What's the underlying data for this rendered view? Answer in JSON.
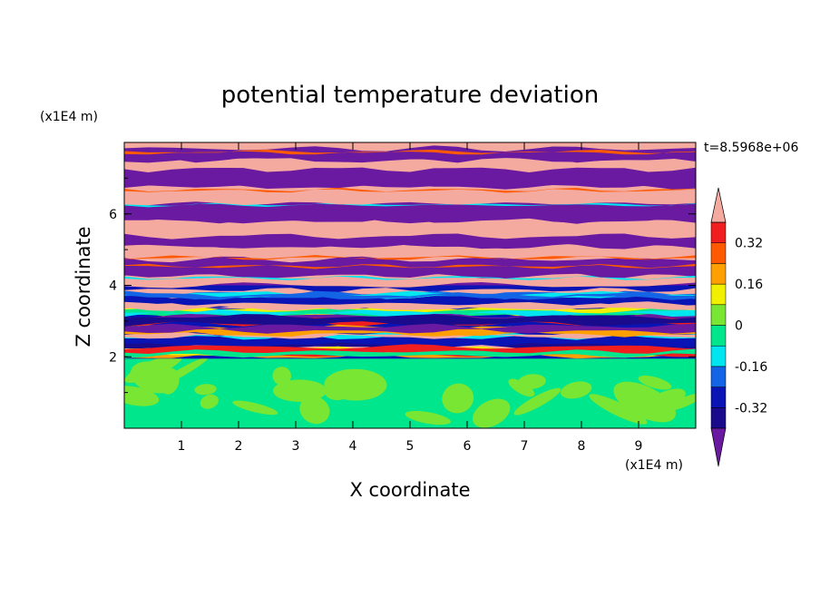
{
  "chart_data": {
    "type": "heatmap",
    "title": "potential temperature deviation",
    "xlabel": "X coordinate",
    "ylabel": "Z coordinate",
    "x_unit": "(x1E4 m)",
    "y_unit": "(x1E4 m)",
    "time_label": "t=8.5968e+06",
    "xlim": [
      0,
      10
    ],
    "ylim": [
      0,
      8
    ],
    "x_ticks": [
      "1",
      "2",
      "3",
      "4",
      "5",
      "6",
      "7",
      "8",
      "9"
    ],
    "y_ticks": [
      "2",
      "4",
      "6"
    ],
    "colorbar": {
      "levels": [
        -0.4,
        -0.32,
        -0.24,
        -0.16,
        -0.08,
        0,
        0.08,
        0.16,
        0.24,
        0.32,
        0.4
      ],
      "colors": [
        "#1a0a8c",
        "#0a14b4",
        "#1464e6",
        "#00e6f0",
        "#00e68c",
        "#78e632",
        "#f0f000",
        "#ffa000",
        "#ff5a00",
        "#f01e1e"
      ],
      "under_color": "#6a1aa0",
      "over_color": "#f5aaa0",
      "tick_labels": [
        "-0.32",
        "-0.16",
        "0",
        "0.16",
        "0.32"
      ],
      "extend": "both"
    },
    "field_description_bands": [
      {
        "z_range": [
          0,
          1.9
        ],
        "dominant": "0 to 0.08 (green / light green)"
      },
      {
        "z_range": [
          1.9,
          4.0
        ],
        "dominant": "mixed -0.4 to 0.4 (blue, cyan, yellow, red, pink streaks)"
      },
      {
        "z_range": [
          4.0,
          8.0
        ],
        "dominant": "alternating layers below -0.4 (purple) and above 0.4 (pink)"
      }
    ]
  }
}
